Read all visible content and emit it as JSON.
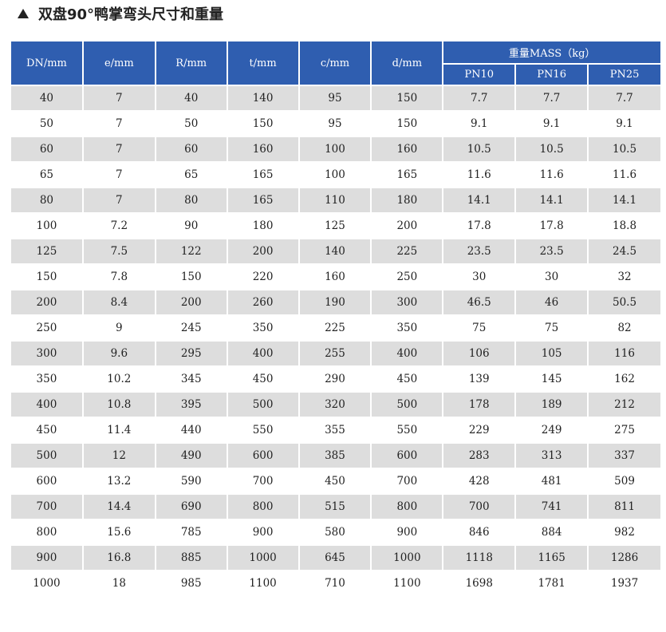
{
  "title": "双盘90°鸭掌弯头尺寸和重量",
  "icons": {
    "title_marker": "triangle-up-icon"
  },
  "colors": {
    "header_bg": "#2f5eb0",
    "stripe_bg": "#dddddd",
    "row_bg": "#ffffff"
  },
  "table": {
    "columns": [
      "DN/mm",
      "e/mm",
      "R/mm",
      "t/mm",
      "c/mm",
      "d/mm"
    ],
    "mass_header": "重量MASS（kg）",
    "mass_columns": [
      "PN10",
      "PN16",
      "PN25"
    ],
    "rows": [
      [
        "40",
        "7",
        "40",
        "140",
        "95",
        "150",
        "7.7",
        "7.7",
        "7.7"
      ],
      [
        "50",
        "7",
        "50",
        "150",
        "95",
        "150",
        "9.1",
        "9.1",
        "9.1"
      ],
      [
        "60",
        "7",
        "60",
        "160",
        "100",
        "160",
        "10.5",
        "10.5",
        "10.5"
      ],
      [
        "65",
        "7",
        "65",
        "165",
        "100",
        "165",
        "11.6",
        "11.6",
        "11.6"
      ],
      [
        "80",
        "7",
        "80",
        "165",
        "110",
        "180",
        "14.1",
        "14.1",
        "14.1"
      ],
      [
        "100",
        "7.2",
        "90",
        "180",
        "125",
        "200",
        "17.8",
        "17.8",
        "18.8"
      ],
      [
        "125",
        "7.5",
        "122",
        "200",
        "140",
        "225",
        "23.5",
        "23.5",
        "24.5"
      ],
      [
        "150",
        "7.8",
        "150",
        "220",
        "160",
        "250",
        "30",
        "30",
        "32"
      ],
      [
        "200",
        "8.4",
        "200",
        "260",
        "190",
        "300",
        "46.5",
        "46",
        "50.5"
      ],
      [
        "250",
        "9",
        "245",
        "350",
        "225",
        "350",
        "75",
        "75",
        "82"
      ],
      [
        "300",
        "9.6",
        "295",
        "400",
        "255",
        "400",
        "106",
        "105",
        "116"
      ],
      [
        "350",
        "10.2",
        "345",
        "450",
        "290",
        "450",
        "139",
        "145",
        "162"
      ],
      [
        "400",
        "10.8",
        "395",
        "500",
        "320",
        "500",
        "178",
        "189",
        "212"
      ],
      [
        "450",
        "11.4",
        "440",
        "550",
        "355",
        "550",
        "229",
        "249",
        "275"
      ],
      [
        "500",
        "12",
        "490",
        "600",
        "385",
        "600",
        "283",
        "313",
        "337"
      ],
      [
        "600",
        "13.2",
        "590",
        "700",
        "450",
        "700",
        "428",
        "481",
        "509"
      ],
      [
        "700",
        "14.4",
        "690",
        "800",
        "515",
        "800",
        "700",
        "741",
        "811"
      ],
      [
        "800",
        "15.6",
        "785",
        "900",
        "580",
        "900",
        "846",
        "884",
        "982"
      ],
      [
        "900",
        "16.8",
        "885",
        "1000",
        "645",
        "1000",
        "1118",
        "1165",
        "1286"
      ],
      [
        "1000",
        "18",
        "985",
        "1100",
        "710",
        "1100",
        "1698",
        "1781",
        "1937"
      ]
    ]
  }
}
